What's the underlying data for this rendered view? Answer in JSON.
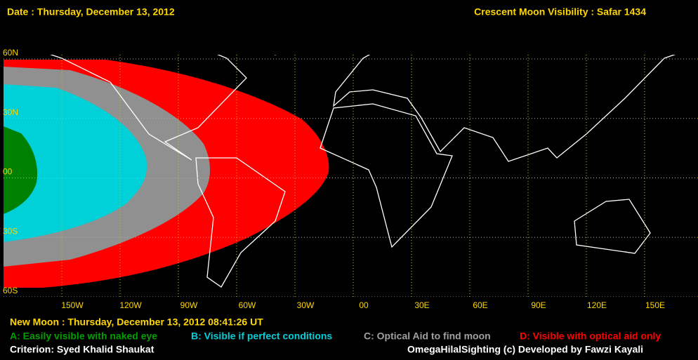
{
  "header": {
    "date": "Date : Thursday, December 13, 2012",
    "title": "Crescent Moon Visibility : Safar  1434"
  },
  "map": {
    "lat_labels": [
      "60N",
      "30N",
      "00",
      "30S",
      "60S"
    ],
    "lon_labels": [
      "150W",
      "120W",
      "90W",
      "60W",
      "30W",
      "00",
      "30E",
      "60E",
      "90E",
      "120E",
      "150E"
    ]
  },
  "footer": {
    "new_moon": "New Moon : Thursday, December 13, 2012  08:41:26  UT",
    "criterion": "Criterion: Syed Khalid Shaukat",
    "credit": "OmegaHilalSighting  (c)  Developed by Fawzi Kayali"
  },
  "legend": [
    "A: Easily visible with naked eye",
    "B: Visible if perfect conditions",
    "C: Optical Aid to find moon",
    "D: Visible with optical aid only"
  ]
}
